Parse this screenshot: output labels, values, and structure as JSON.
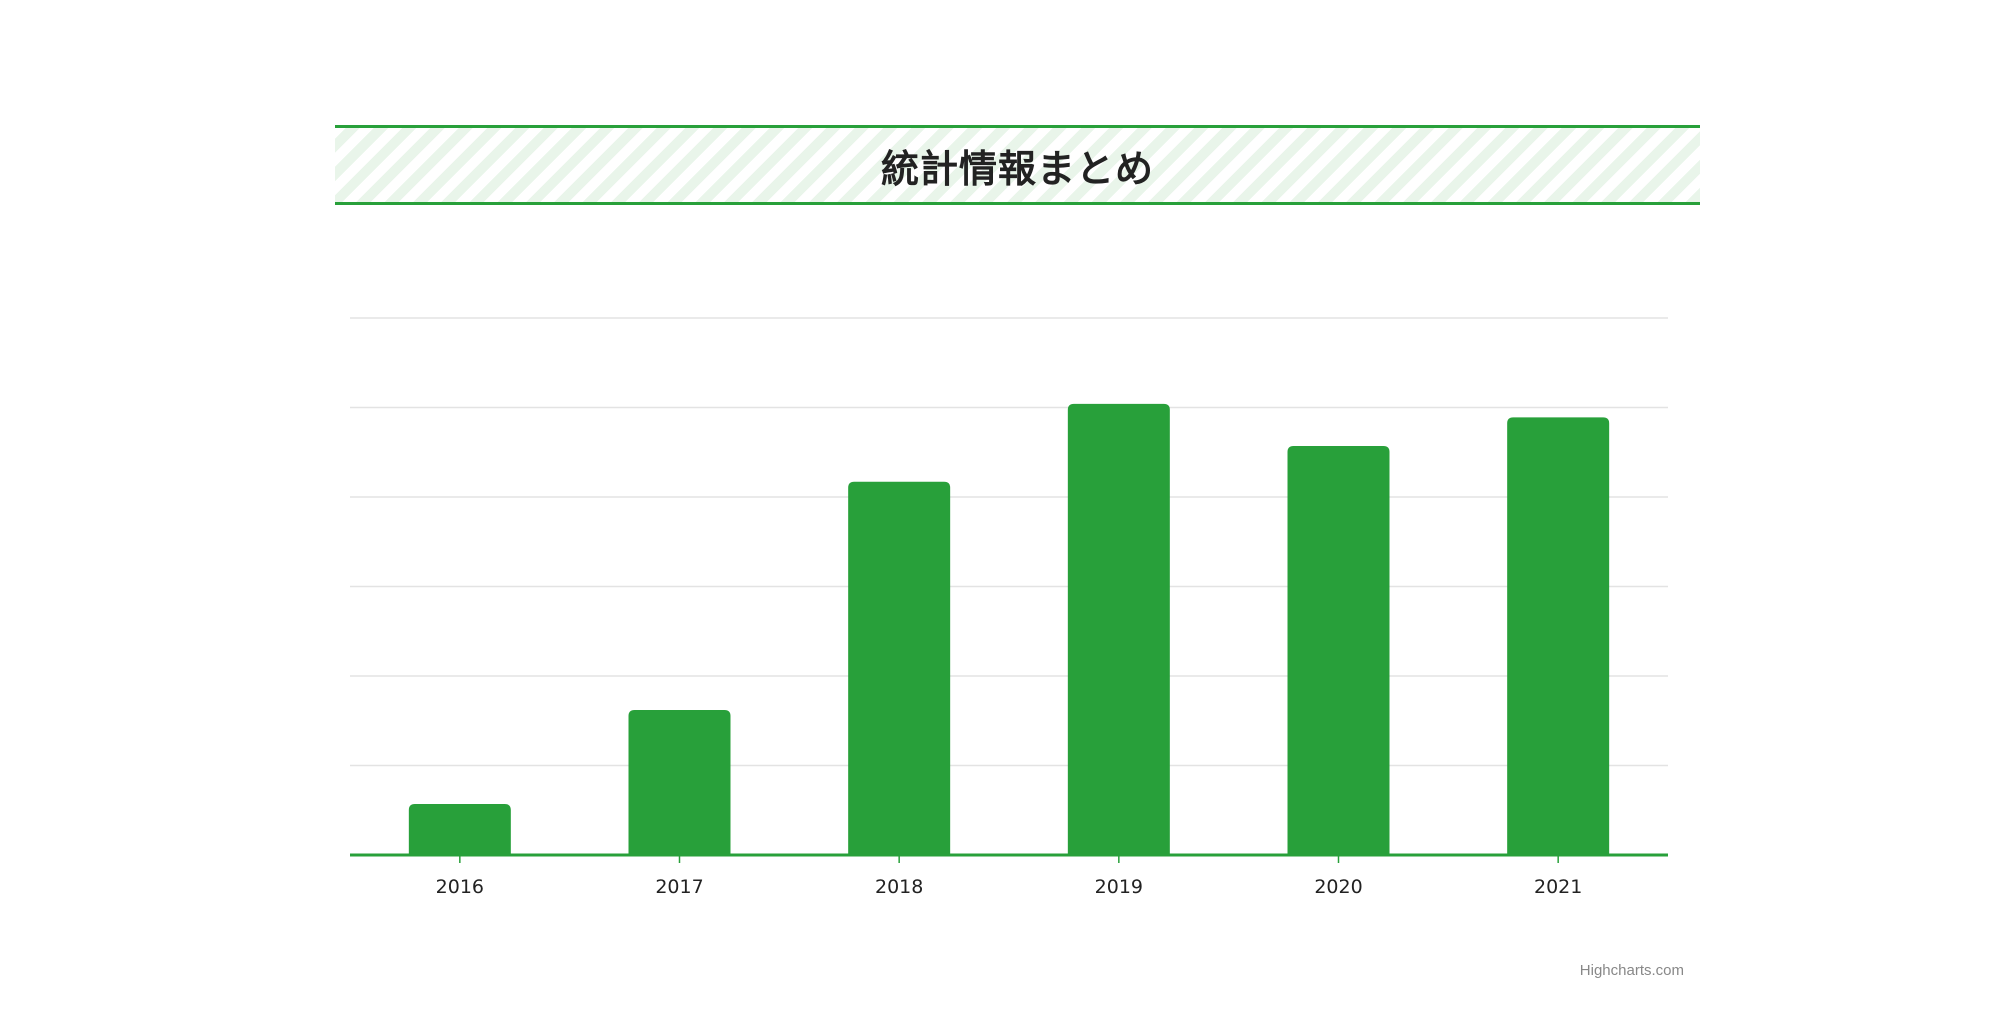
{
  "title": "統計情報まとめ",
  "credit": "Highcharts.com",
  "colors": {
    "bar": "#28a03a",
    "accent": "#28a03a",
    "grid": "#e3e3e3",
    "band_stripe": "#e9f5ea",
    "tick_label": "#222222"
  },
  "chart_data": {
    "type": "bar",
    "categories": [
      "2016",
      "2017",
      "2018",
      "2019",
      "2020",
      "2021"
    ],
    "values": [
      0.57,
      1.62,
      4.17,
      5.04,
      4.57,
      4.89
    ],
    "ylim": [
      0,
      6
    ],
    "grid": true,
    "y_tick_labels_visible": false
  }
}
